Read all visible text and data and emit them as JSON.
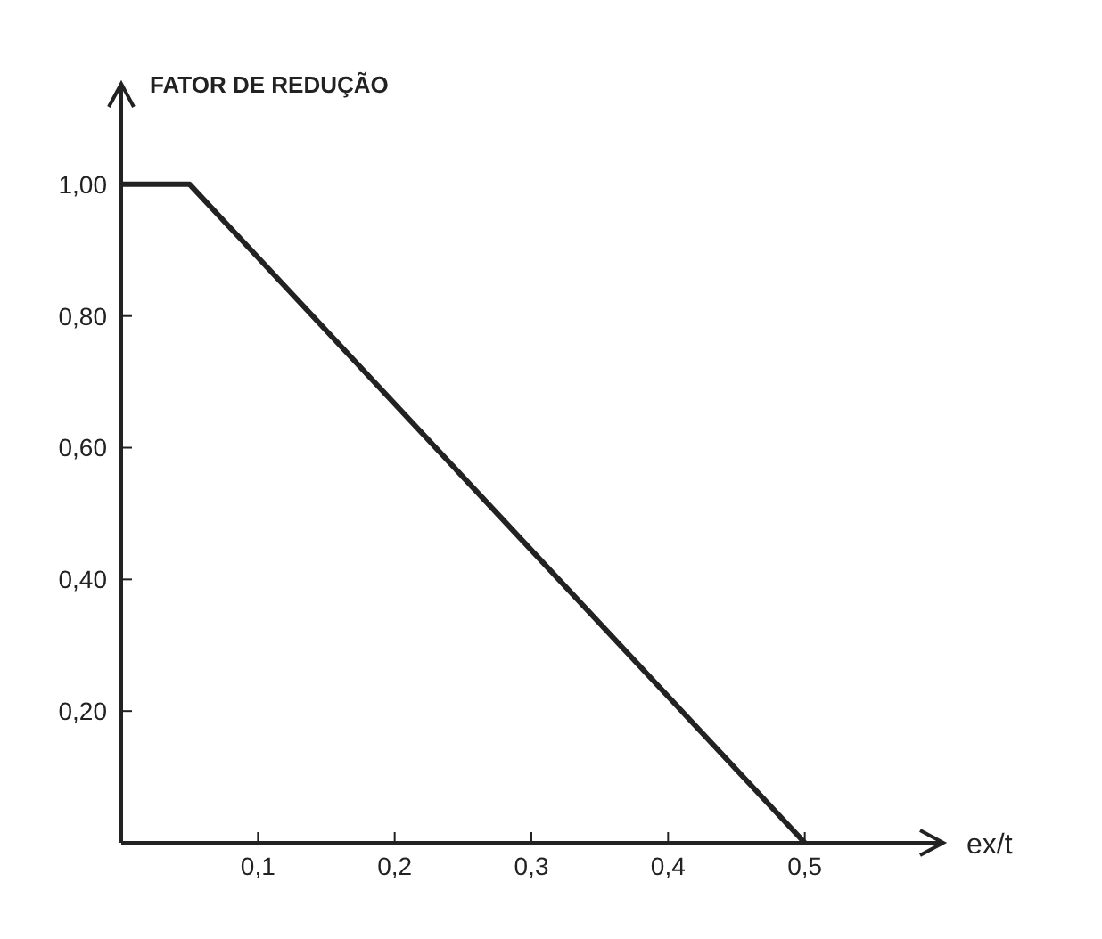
{
  "chart_data": {
    "type": "line",
    "ylabel": "FATOR DE REDUÇÃO",
    "xlabel": "ex/t",
    "x": [
      0,
      0.05,
      0.5
    ],
    "series": [
      {
        "color": "#222222",
        "values": [
          1.0,
          1.0,
          0
        ]
      }
    ],
    "xlim": [
      0,
      0.6
    ],
    "ylim": [
      0,
      1.15
    ],
    "xticks": [
      {
        "value": 0.1,
        "label": "0,1"
      },
      {
        "value": 0.2,
        "label": "0,2"
      },
      {
        "value": 0.3,
        "label": "0,3"
      },
      {
        "value": 0.4,
        "label": "0,4"
      },
      {
        "value": 0.5,
        "label": "0,5"
      }
    ],
    "yticks": [
      {
        "value": 0.2,
        "label": "0,20"
      },
      {
        "value": 0.4,
        "label": "0,40"
      },
      {
        "value": 0.6,
        "label": "0,60"
      },
      {
        "value": 0.8,
        "label": "0,80"
      },
      {
        "value": 1.0,
        "label": "1,00"
      }
    ],
    "grid": false,
    "legend": false,
    "marker": "none",
    "line_style": "solid"
  }
}
